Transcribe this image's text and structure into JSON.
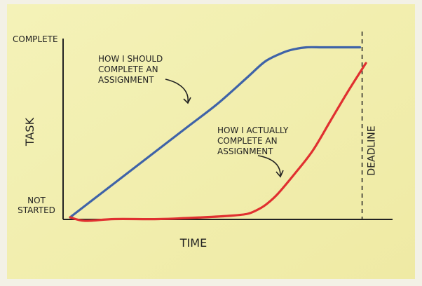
{
  "chart_data": {
    "type": "line",
    "xlabel": "TIME",
    "ylabel": "TASK",
    "y_tick_labels": [
      {
        "value": 1,
        "text": "COMPLETE"
      },
      {
        "value": 0,
        "lines": [
          "NOT",
          "STARTED"
        ]
      }
    ],
    "xlim": [
      0,
      1
    ],
    "ylim": [
      0,
      1
    ],
    "grid": false,
    "series": [
      {
        "color": "#3f63a8",
        "x": [
          0.0,
          0.1,
          0.2,
          0.3,
          0.4,
          0.5,
          0.6,
          0.66,
          0.72,
          0.76,
          0.8,
          0.85,
          0.9,
          0.98
        ],
        "y": [
          0.0,
          0.13,
          0.26,
          0.39,
          0.52,
          0.65,
          0.8,
          0.89,
          0.94,
          0.96,
          0.97,
          0.97,
          0.97,
          0.97
        ]
      },
      {
        "color": "#e03030",
        "x": [
          0.0,
          0.05,
          0.15,
          0.3,
          0.45,
          0.55,
          0.6,
          0.63,
          0.66,
          0.7,
          0.76,
          0.82,
          0.88,
          0.94,
          1.0
        ],
        "y": [
          0.0,
          -0.02,
          -0.01,
          -0.01,
          0.0,
          0.01,
          0.02,
          0.04,
          0.07,
          0.13,
          0.25,
          0.38,
          0.55,
          0.72,
          0.88
        ]
      }
    ],
    "annotations": [
      {
        "lines": [
          "HOW I SHOULD",
          "COMPLETE AN",
          "ASSIGNMENT"
        ],
        "target_series": 0
      },
      {
        "lines": [
          "HOW I ACTUALLY",
          "COMPLETE AN",
          "ASSIGNMENT"
        ],
        "target_series": 1
      }
    ],
    "vertical_markers": [
      {
        "x": 0.98,
        "label": "DEADLINE",
        "style": "dashed"
      }
    ]
  }
}
